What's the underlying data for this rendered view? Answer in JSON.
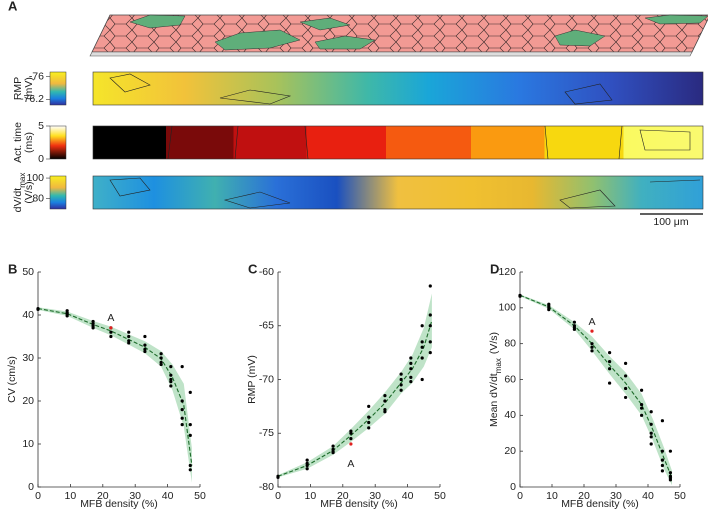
{
  "chart_data": [
    {
      "type": "maps",
      "panel": "A",
      "scale_bar": "100 μm",
      "strips": [
        {
          "label": "RMP",
          "unit": "(mV)",
          "clim": [
            -76.25,
            -75.96
          ],
          "cticks": [
            -76,
            -76.2
          ],
          "colormap": "parula"
        },
        {
          "label": "Act. time",
          "unit": "(ms)",
          "clim": [
            0,
            5
          ],
          "cticks": [
            5,
            0
          ],
          "colormap": "hot"
        },
        {
          "label": "dV/dt",
          "label_sub": "max",
          "unit": "(V/s)",
          "clim": [
            70,
            102
          ],
          "cticks": [
            100,
            80
          ],
          "colormap": "parula"
        }
      ]
    },
    {
      "type": "scatter",
      "panel": "B",
      "xlabel": "MFB density (%)",
      "ylabel": "CV (cm/s)",
      "xlim": [
        0,
        50
      ],
      "xticks": [
        0,
        10,
        20,
        30,
        40,
        50
      ],
      "ylim": [
        0,
        50
      ],
      "yticks": [
        0,
        10,
        20,
        30,
        40,
        50
      ],
      "band": {
        "color": "#bfe3c8",
        "x": [
          0,
          9,
          17,
          22.5,
          28,
          33,
          38,
          41.5,
          45,
          47.5
        ],
        "lower": [
          41.2,
          39.8,
          37,
          35.3,
          33.1,
          31.1,
          28,
          22.5,
          14,
          1
        ],
        "upper": [
          41.8,
          40.8,
          38.6,
          37.3,
          35.5,
          33.9,
          31.6,
          28.5,
          24,
          9
        ]
      },
      "line": {
        "color": "#1d6b2a",
        "x": [
          0,
          9,
          17,
          22.5,
          28,
          33,
          38,
          41.5,
          45,
          47.5
        ],
        "values": [
          41.5,
          40.3,
          37.8,
          36.3,
          34.3,
          32.5,
          29.8,
          25.5,
          19,
          5
        ]
      },
      "series": [
        {
          "color": "#000000",
          "x": [
            0,
            0,
            9,
            9,
            9,
            9,
            17,
            17,
            17,
            17,
            22.5,
            22.5,
            22.5,
            28,
            28,
            28,
            28,
            33,
            33,
            33,
            33,
            38,
            38,
            38,
            38,
            41,
            41,
            41,
            41,
            41,
            44.5,
            44.5,
            44.5,
            44.5,
            44.5,
            47,
            47,
            47,
            47,
            47
          ],
          "values": [
            41.5,
            41.3,
            40.5,
            41,
            39.8,
            40.2,
            38.5,
            37.5,
            37,
            38,
            36,
            35,
            37,
            35,
            34,
            33.5,
            36,
            35,
            33,
            32,
            31.5,
            30,
            29,
            31,
            28.5,
            28,
            25,
            24.5,
            23.5,
            26,
            28,
            20,
            16,
            14.5,
            18,
            22,
            14.5,
            12,
            5,
            4
          ]
        },
        {
          "color": "#e0201f",
          "x": [
            22.5
          ],
          "values": [
            37
          ]
        }
      ],
      "annotations": [
        {
          "text": "A",
          "x": 22.5,
          "y": 39.2,
          "color": "#e0201f"
        }
      ]
    },
    {
      "type": "scatter",
      "panel": "C",
      "xlabel": "MFB density (%)",
      "ylabel": "RMP (mV)",
      "xlim": [
        0,
        50
      ],
      "xticks": [
        0,
        10,
        20,
        30,
        40,
        50
      ],
      "ylim": [
        -80,
        -60
      ],
      "yticks": [
        -80,
        -75,
        -70,
        -65,
        -60
      ],
      "band": {
        "color": "#bfe3c8",
        "x": [
          0,
          9,
          17,
          22.5,
          28,
          33,
          38,
          41.5,
          45,
          47.5
        ],
        "lower": [
          -79.1,
          -78.3,
          -77,
          -75.8,
          -74.5,
          -73.2,
          -71.3,
          -70.3,
          -68.8,
          -67
        ],
        "upper": [
          -78.9,
          -77.7,
          -76.2,
          -74.6,
          -72.9,
          -71.2,
          -69.3,
          -67.7,
          -65.2,
          -62
        ]
      },
      "line": {
        "color": "#1d6b2a",
        "x": [
          0,
          9,
          17,
          22.5,
          28,
          33,
          38,
          41.5,
          45,
          47.5
        ],
        "values": [
          -79,
          -78,
          -76.6,
          -75.2,
          -73.7,
          -72.2,
          -70.3,
          -69,
          -67,
          -64.5
        ]
      },
      "series": [
        {
          "color": "#000000",
          "x": [
            0,
            0,
            9,
            9,
            9,
            9,
            17,
            17,
            17,
            17,
            22.5,
            22.5,
            22.5,
            28,
            28,
            28,
            28,
            33,
            33,
            33,
            33,
            38,
            38,
            38,
            38,
            41,
            41,
            41,
            41,
            41,
            44.5,
            44.5,
            44.5,
            44.5,
            44.5,
            47,
            47,
            47,
            47,
            47
          ],
          "values": [
            -79,
            -79.1,
            -78.3,
            -78,
            -77.8,
            -77.5,
            -76.7,
            -76.5,
            -76.8,
            -76.2,
            -75.5,
            -75,
            -74.8,
            -74.5,
            -73.5,
            -72.5,
            -74,
            -72,
            -71.5,
            -73,
            -72.8,
            -70,
            -69.5,
            -71,
            -70.5,
            -69.8,
            -69,
            -68.5,
            -70.2,
            -68,
            -68,
            -66.5,
            -65,
            -70,
            -67,
            -65,
            -64,
            -61.3,
            -66.5,
            -67.5
          ]
        },
        {
          "color": "#e0201f",
          "x": [
            22.5
          ],
          "values": [
            -76
          ]
        }
      ],
      "annotations": [
        {
          "text": "A",
          "x": 22.5,
          "y": -77.9,
          "color": "#e0201f"
        }
      ]
    },
    {
      "type": "scatter",
      "panel": "D",
      "xlabel": "MFB density (%)",
      "ylabel": "Mean dV/dt",
      "ylabel_sub": "max",
      "ylabel_unit": "(V/s)",
      "xlim": [
        0,
        50
      ],
      "xticks": [
        0,
        10,
        20,
        30,
        40,
        50
      ],
      "ylim": [
        0,
        120
      ],
      "yticks": [
        0,
        20,
        40,
        60,
        80,
        100,
        120
      ],
      "band": {
        "color": "#bfe3c8",
        "x": [
          0,
          9,
          17,
          22.5,
          28,
          33,
          38,
          41.5,
          45,
          47.5
        ],
        "lower": [
          106.5,
          99.5,
          88,
          76,
          63,
          52,
          40,
          26,
          10,
          1
        ],
        "upper": [
          107.5,
          101.5,
          92,
          84,
          73,
          64,
          52,
          38,
          22,
          9
        ]
      },
      "line": {
        "color": "#1d6b2a",
        "x": [
          0,
          9,
          17,
          22.5,
          28,
          33,
          38,
          41.5,
          45,
          47.5
        ],
        "values": [
          107,
          100.5,
          90,
          80,
          68,
          58,
          46,
          32,
          16,
          5
        ]
      },
      "series": [
        {
          "color": "#000000",
          "x": [
            0,
            0,
            9,
            9,
            9,
            9,
            17,
            17,
            17,
            17,
            22.5,
            22.5,
            22.5,
            28,
            28,
            28,
            28,
            33,
            33,
            33,
            33,
            38,
            38,
            38,
            38,
            41,
            41,
            41,
            41,
            41,
            44.5,
            44.5,
            44.5,
            44.5,
            44.5,
            47,
            47,
            47,
            47,
            47
          ],
          "values": [
            107,
            106.5,
            102,
            100,
            101,
            99,
            92,
            90,
            89,
            88,
            80,
            78,
            76,
            75,
            70,
            66,
            58,
            69,
            62,
            55,
            50,
            54,
            46,
            40,
            44,
            42,
            35,
            30,
            28,
            24,
            37,
            20,
            15,
            12,
            9,
            20,
            8,
            6,
            5,
            4
          ]
        },
        {
          "color": "#e0201f",
          "x": [
            22.5
          ],
          "values": [
            87
          ]
        }
      ],
      "annotations": [
        {
          "text": "A",
          "x": 22.5,
          "y": 92,
          "color": "#e0201f"
        }
      ]
    }
  ]
}
